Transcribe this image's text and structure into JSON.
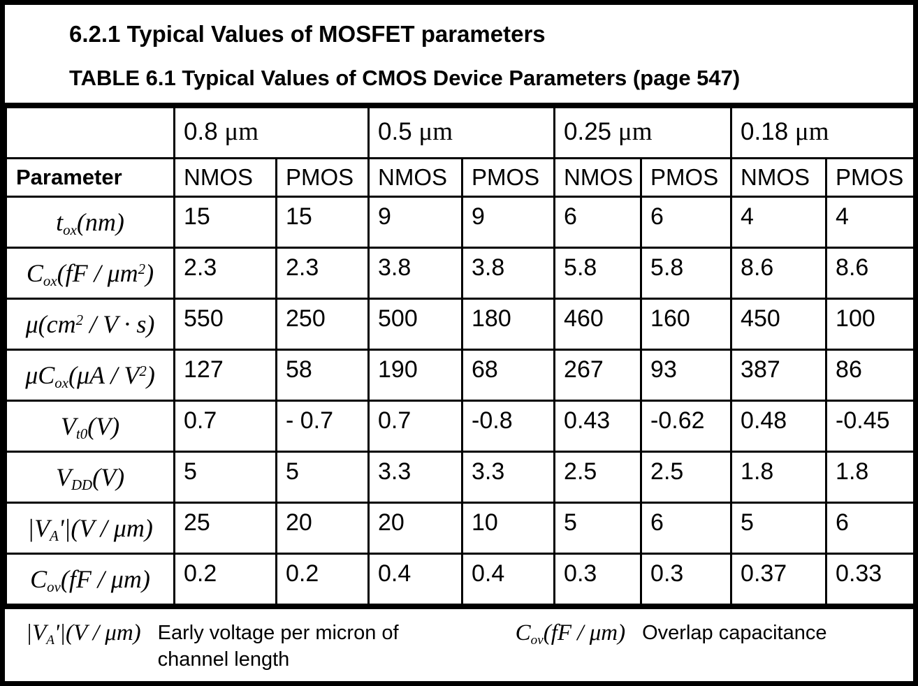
{
  "page": {
    "heading": "6.2.1 Typical Values of MOSFET parameters",
    "subheading": "TABLE 6.1 Typical Values of CMOS Device Parameters (page 547)"
  },
  "colors": {
    "text": "#000000",
    "background": "#ffffff",
    "border": "#000000"
  },
  "table": {
    "parameter_header": "Parameter",
    "nodes": [
      {
        "name": "0.8 um",
        "segments": [
          {
            "t": "0.8 "
          },
          {
            "t": "μm",
            "s": "unit"
          }
        ]
      },
      {
        "name": "0.5 um",
        "segments": [
          {
            "t": "0.5 "
          },
          {
            "t": "μm",
            "s": "unit"
          }
        ]
      },
      {
        "name": "0.25 um",
        "segments": [
          {
            "t": "0.25 "
          },
          {
            "t": "μm",
            "s": "unit"
          }
        ]
      },
      {
        "name": "0.18 um",
        "segments": [
          {
            "t": "0.18 "
          },
          {
            "t": "μm",
            "s": "unit"
          }
        ]
      }
    ],
    "device_types": [
      "NMOS",
      "PMOS",
      "NMOS",
      "PMOS",
      "NMOS",
      "PMOS",
      "NMOS",
      "PMOS"
    ],
    "rows": [
      {
        "name": "t_ox (nm)",
        "label": [
          {
            "t": "t"
          },
          {
            "t": "ox",
            "s": "sub"
          },
          {
            "t": "(nm)"
          }
        ],
        "values": [
          "15",
          "15",
          "9",
          "9",
          "6",
          "6",
          "4",
          "4"
        ]
      },
      {
        "name": "C_ox (fF/um2)",
        "label": [
          {
            "t": "C"
          },
          {
            "t": "ox",
            "s": "sub"
          },
          {
            "t": "(fF / μm"
          },
          {
            "t": "2",
            "s": "sup"
          },
          {
            "t": ")"
          }
        ],
        "values": [
          "2.3",
          "2.3",
          "3.8",
          "3.8",
          "5.8",
          "5.8",
          "8.6",
          "8.6"
        ]
      },
      {
        "name": "mu (cm2/V*s)",
        "label": [
          {
            "t": "μ(cm"
          },
          {
            "t": "2",
            "s": "sup"
          },
          {
            "t": " / V · s)"
          }
        ],
        "values": [
          "550",
          "250",
          "500",
          "180",
          "460",
          "160",
          "450",
          "100"
        ]
      },
      {
        "name": "mu*C_ox (uA/V2)",
        "label": [
          {
            "t": "μC"
          },
          {
            "t": "ox",
            "s": "sub"
          },
          {
            "t": "(μA / V"
          },
          {
            "t": "2",
            "s": "sup"
          },
          {
            "t": ")"
          }
        ],
        "values": [
          "127",
          "58",
          "190",
          "68",
          "267",
          "93",
          "387",
          "86"
        ]
      },
      {
        "name": "V_t0 (V)",
        "label": [
          {
            "t": "V"
          },
          {
            "t": "t0",
            "s": "sub"
          },
          {
            "t": "(V)"
          }
        ],
        "values": [
          "0.7",
          "- 0.7",
          "0.7",
          "-0.8",
          "0.43",
          "-0.62",
          "0.48",
          "-0.45"
        ]
      },
      {
        "name": "V_DD (V)",
        "label": [
          {
            "t": "V"
          },
          {
            "t": "DD",
            "s": "sub"
          },
          {
            "t": "(V)"
          }
        ],
        "values": [
          "5",
          "5",
          "3.3",
          "3.3",
          "2.5",
          "2.5",
          "1.8",
          "1.8"
        ]
      },
      {
        "name": "|V_A'| (V/um)",
        "label": [
          {
            "t": "|V"
          },
          {
            "t": "A",
            "s": "sub"
          },
          {
            "t": "'|(V / μm)"
          }
        ],
        "values": [
          "25",
          "20",
          "20",
          "10",
          "5",
          "6",
          "5",
          "6"
        ]
      },
      {
        "name": "C_ov (fF/um)",
        "label": [
          {
            "t": "C"
          },
          {
            "t": "ov",
            "s": "sub"
          },
          {
            "t": "(fF / μm)"
          }
        ],
        "values": [
          "0.2",
          "0.2",
          "0.4",
          "0.4",
          "0.3",
          "0.3",
          "0.37",
          "0.33"
        ]
      }
    ]
  },
  "footnotes": [
    {
      "symbol": [
        {
          "t": "|V"
        },
        {
          "t": "A",
          "s": "sub"
        },
        {
          "t": "'|(V / μm)"
        }
      ],
      "description": "Early voltage per micron of channel length"
    },
    {
      "symbol": [
        {
          "t": "C"
        },
        {
          "t": "ov",
          "s": "sub"
        },
        {
          "t": "(fF / μm)"
        }
      ],
      "description": "Overlap capacitance"
    }
  ]
}
